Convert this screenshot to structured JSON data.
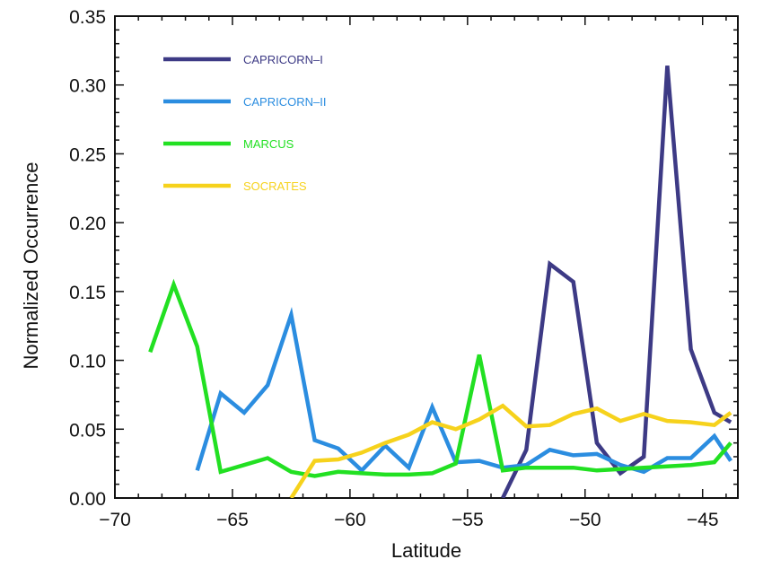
{
  "chart_data": {
    "type": "line",
    "xlabel": "Latitude",
    "ylabel": "Normalized Occurrence",
    "xlim": [
      -70,
      -43.5
    ],
    "ylim": [
      0,
      0.35
    ],
    "xticks": [
      -70,
      -65,
      -60,
      -55,
      -50,
      -45
    ],
    "xtick_labels": [
      "−70",
      "−65",
      "−60",
      "−55",
      "−50",
      "−45"
    ],
    "yticks": [
      0,
      0.05,
      0.1,
      0.15,
      0.2,
      0.25,
      0.3,
      0.35
    ],
    "ytick_labels": [
      "0.00",
      "0.05",
      "0.10",
      "0.15",
      "0.20",
      "0.25",
      "0.30",
      "0.35"
    ],
    "legend_position": "top-left",
    "series": [
      {
        "name": "CAPRICORN–I",
        "color": "#3d3a85",
        "x": [
          -53.5,
          -52.5,
          -51.5,
          -50.5,
          -49.5,
          -48.5,
          -47.5,
          -46.5,
          -45.5,
          -44.5,
          -43.8
        ],
        "y": [
          0.0,
          0.035,
          0.17,
          0.157,
          0.04,
          0.018,
          0.03,
          0.314,
          0.108,
          0.062,
          0.055
        ]
      },
      {
        "name": "CAPRICORN–II",
        "color": "#2b8de0",
        "x": [
          -66.5,
          -65.5,
          -64.5,
          -63.5,
          -62.5,
          -61.5,
          -60.5,
          -59.5,
          -58.5,
          -57.5,
          -56.5,
          -55.5,
          -54.5,
          -53.5,
          -52.5,
          -51.5,
          -50.5,
          -49.5,
          -48.5,
          -47.5,
          -46.5,
          -45.5,
          -44.5,
          -43.8
        ],
        "y": [
          0.02,
          0.076,
          0.062,
          0.082,
          0.133,
          0.042,
          0.036,
          0.02,
          0.038,
          0.022,
          0.066,
          0.026,
          0.027,
          0.022,
          0.024,
          0.035,
          0.031,
          0.032,
          0.024,
          0.019,
          0.029,
          0.029,
          0.045,
          0.027
        ]
      },
      {
        "name": "MARCUS",
        "color": "#22e022",
        "x": [
          -68.5,
          -67.5,
          -66.5,
          -65.5,
          -64.5,
          -63.5,
          -62.5,
          -61.5,
          -60.5,
          -59.5,
          -58.5,
          -57.5,
          -56.5,
          -55.5,
          -54.5,
          -53.5,
          -52.5,
          -51.5,
          -50.5,
          -49.5,
          -48.5,
          -47.5,
          -46.5,
          -45.5,
          -44.5,
          -43.8
        ],
        "y": [
          0.106,
          0.155,
          0.11,
          0.019,
          0.024,
          0.029,
          0.019,
          0.016,
          0.019,
          0.018,
          0.017,
          0.017,
          0.018,
          0.025,
          0.104,
          0.02,
          0.022,
          0.022,
          0.022,
          0.02,
          0.021,
          0.022,
          0.023,
          0.024,
          0.026,
          0.04
        ]
      },
      {
        "name": "SOCRATES",
        "color": "#f6d21c",
        "x": [
          -62.5,
          -61.5,
          -60.5,
          -59.5,
          -58.5,
          -57.5,
          -56.5,
          -55.5,
          -54.5,
          -53.5,
          -52.5,
          -51.5,
          -50.5,
          -49.5,
          -48.5,
          -47.5,
          -46.5,
          -45.5,
          -44.5,
          -43.8
        ],
        "y": [
          0.0,
          0.027,
          0.028,
          0.033,
          0.04,
          0.046,
          0.055,
          0.05,
          0.057,
          0.067,
          0.052,
          0.053,
          0.061,
          0.065,
          0.056,
          0.061,
          0.056,
          0.055,
          0.053,
          0.062
        ]
      }
    ]
  }
}
